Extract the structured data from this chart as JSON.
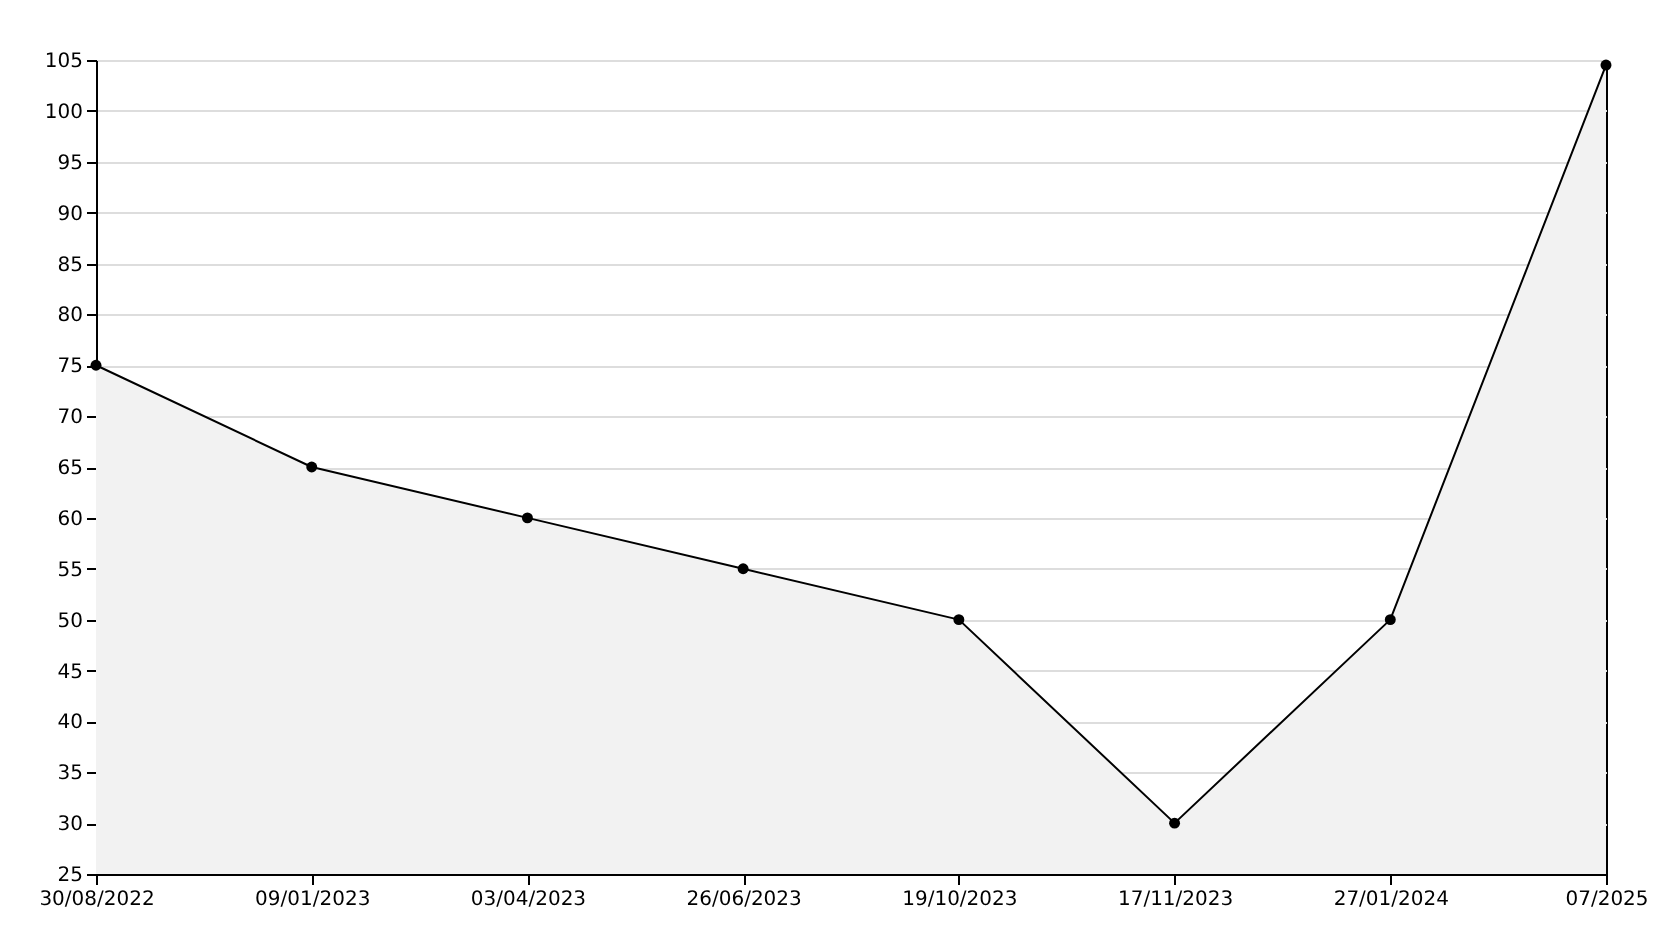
{
  "chart_data": {
    "type": "area",
    "categories": [
      "30/08/2022",
      "09/01/2023",
      "03/04/2023",
      "26/06/2023",
      "19/10/2023",
      "17/11/2023",
      "27/01/2024",
      "07/2025"
    ],
    "series": [
      {
        "color": "#000000",
        "values": [
          75,
          65,
          60,
          55,
          50,
          30,
          50,
          104.5
        ]
      }
    ],
    "ylim": [
      25,
      105
    ],
    "yticks": [
      25,
      30,
      35,
      40,
      45,
      50,
      55,
      60,
      65,
      70,
      75,
      80,
      85,
      90,
      95,
      100,
      105
    ],
    "grid": "y",
    "marker": "circle",
    "line_style": "solid"
  }
}
